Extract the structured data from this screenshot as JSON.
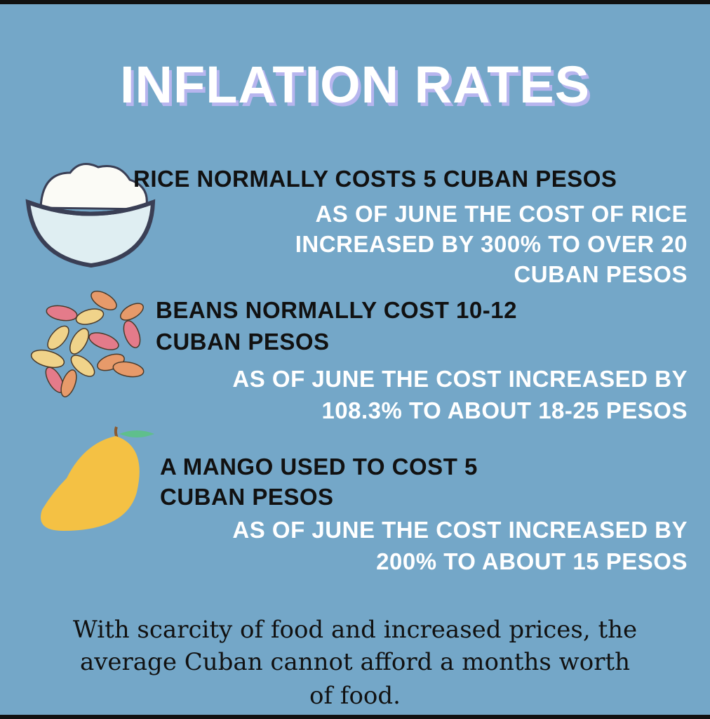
{
  "title": "INFLATION RATES",
  "items": [
    {
      "heading": [
        "RICE NORMALLY COSTS 5 CUBAN PESOS"
      ],
      "detail": [
        "AS OF JUNE THE COST OF RICE",
        "INCREASED BY 300% TO OVER 20",
        "CUBAN PESOS"
      ]
    },
    {
      "heading": [
        "BEANS NORMALLY COST 10-12",
        "CUBAN PESOS"
      ],
      "detail": [
        "AS OF JUNE THE COST INCREASED BY",
        "108.3% TO ABOUT 18-25 PESOS"
      ]
    },
    {
      "heading": [
        "A MANGO USED TO COST 5",
        "CUBAN PESOS"
      ],
      "detail": [
        "AS OF JUNE THE COST INCREASED BY",
        "200% TO ABOUT 15 PESOS"
      ]
    }
  ],
  "footer": [
    "With scarcity of food and increased prices, the",
    "average Cuban cannot afford a months worth",
    "of food."
  ]
}
